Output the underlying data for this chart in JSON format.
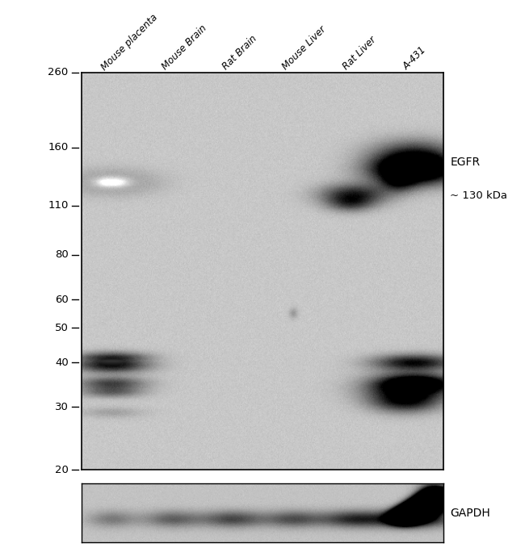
{
  "mw_markers": [
    260,
    160,
    110,
    80,
    60,
    50,
    40,
    30,
    20
  ],
  "lanes": [
    "Mouse placenta",
    "Mouse Brain",
    "Rat Brain",
    "Mouse Liver",
    "Rat Liver",
    "A-431"
  ],
  "egfr_label_line1": "EGFR",
  "egfr_label_line2": "~ 130 kDa",
  "gapdh_label": "GAPDH",
  "fig_width": 6.5,
  "fig_height": 6.89,
  "blot_bg": "#c8c8c8",
  "gapdh_bg": "#c0c0c0"
}
